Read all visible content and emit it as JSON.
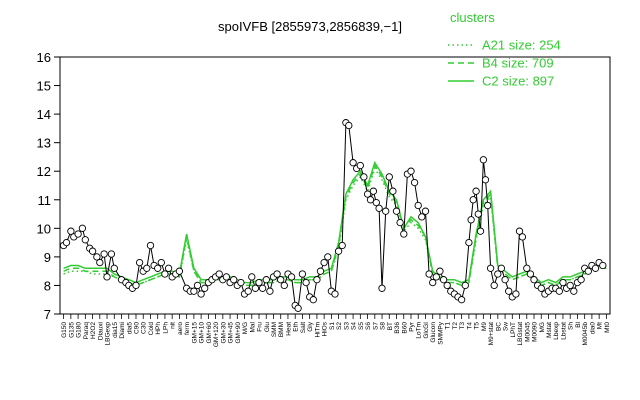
{
  "chart_data": {
    "type": "line",
    "title": "spoIVFB [2855973,2856839,−1]",
    "xlabel": "",
    "ylabel": "",
    "ylim": [
      7,
      16
    ],
    "yticks": [
      7,
      8,
      9,
      10,
      11,
      12,
      13,
      14,
      15,
      16
    ],
    "grid": false,
    "legend": {
      "title": "clusters",
      "placement": "top-right",
      "color": "#33cc33",
      "entries": [
        {
          "label": "A21 size: 254",
          "style": "dotted"
        },
        {
          "label": "B4 size: 709",
          "style": "dashed"
        },
        {
          "label": "C2 size: 897",
          "style": "solid"
        }
      ]
    },
    "x_tick_labels": [
      "G150",
      "G135",
      "G180",
      "Paraq",
      "H2O2",
      "Diauxi",
      "LBGexp",
      "dia15",
      "Diami",
      "dia5",
      "C90",
      "C30",
      "Cold",
      "HPh",
      "LPh",
      "nit",
      "aero",
      "ferm",
      "GM+15",
      "GM+10",
      "GM+60",
      "GM+120",
      "GM+30",
      "GM+45",
      "GM+90",
      "M/G",
      "Mal",
      "Fru",
      "Glu",
      "SMM",
      "BMM",
      "Heat",
      "Eth",
      "Salt",
      "Gly",
      "HiTm",
      "HiOs",
      "S1",
      "S2",
      "S3",
      "S4",
      "S5",
      "S6",
      "S7",
      "S8",
      "BT",
      "B36",
      "B60",
      "Pyr",
      "LoTm",
      "GlcGI",
      "Glucon",
      "SMMPy",
      "T1",
      "T2",
      "T3",
      "T4",
      "T5",
      "M9",
      "M9+stat",
      "BC",
      "Sw",
      "LPhT",
      "LBGstat",
      "M0045",
      "M0090",
      "MG",
      "Mstat",
      "Lbexp",
      "Lbstat",
      "Sh",
      "Bl",
      "M0045b",
      "dia0",
      "Mt",
      "Mt0"
    ],
    "series": [
      {
        "name": "C2 size: 897",
        "style": "solid",
        "color": "#33cc33",
        "values": [
          8.6,
          8.7,
          8.7,
          8.6,
          8.6,
          8.6,
          8.6,
          8.4,
          8.3,
          8.2,
          8.1,
          8.2,
          8.3,
          8.4,
          8.5,
          8.5,
          8.4,
          9.8,
          8.6,
          8.2,
          8.2,
          8.2,
          8.3,
          8.3,
          8.2,
          8.1,
          8.1,
          8.2,
          8.2,
          8.2,
          8.3,
          8.3,
          8.2,
          8.2,
          8.3,
          8.3,
          8.5,
          8.6,
          9.5,
          11.2,
          11.7,
          12.0,
          11.5,
          12.3,
          11.9,
          11.3,
          11.0,
          10.0,
          10.4,
          10.2,
          9.7,
          8.5,
          8.3,
          8.2,
          8.2,
          8.1,
          8.2,
          9.8,
          11.0,
          11.3,
          8.7,
          8.5,
          8.3,
          8.4,
          8.5,
          8.3,
          8.1,
          8.2,
          8.1,
          8.3,
          8.3,
          8.4,
          8.5,
          8.6,
          8.7,
          8.7
        ]
      },
      {
        "name": "A21 size: 254",
        "style": "dotted",
        "color": "#33cc33",
        "values": [
          8.4,
          8.5,
          8.5,
          8.5,
          8.4,
          8.4,
          8.4,
          8.3,
          8.2,
          8.1,
          8.0,
          8.1,
          8.2,
          8.3,
          8.4,
          8.4,
          8.3,
          9.6,
          8.5,
          8.1,
          8.1,
          8.2,
          8.2,
          8.2,
          8.1,
          8.0,
          8.0,
          8.1,
          8.1,
          8.1,
          8.2,
          8.2,
          8.1,
          8.1,
          8.2,
          8.2,
          8.4,
          8.5,
          9.3,
          11.0,
          11.5,
          11.8,
          11.3,
          12.1,
          11.7,
          11.1,
          10.8,
          9.9,
          10.2,
          10.0,
          9.6,
          8.4,
          8.2,
          8.1,
          8.1,
          8.0,
          8.1,
          9.6,
          10.8,
          11.1,
          8.6,
          8.4,
          8.2,
          8.3,
          8.4,
          8.2,
          8.0,
          8.1,
          8.0,
          8.2,
          8.2,
          8.3,
          8.4,
          8.5,
          8.6,
          8.6
        ]
      },
      {
        "name": "B4 size: 709",
        "style": "dashed",
        "color": "#33cc33",
        "values": [
          8.5,
          8.6,
          8.6,
          8.5,
          8.5,
          8.5,
          8.5,
          8.3,
          8.2,
          8.1,
          8.0,
          8.1,
          8.2,
          8.3,
          8.4,
          8.4,
          8.3,
          9.7,
          8.5,
          8.1,
          8.1,
          8.2,
          8.2,
          8.2,
          8.1,
          8.0,
          8.0,
          8.1,
          8.1,
          8.1,
          8.2,
          8.2,
          8.1,
          8.1,
          8.2,
          8.2,
          8.4,
          8.5,
          9.4,
          11.1,
          11.6,
          11.9,
          11.4,
          12.2,
          11.8,
          11.2,
          10.9,
          10.0,
          10.3,
          10.1,
          9.7,
          8.4,
          8.2,
          8.1,
          8.1,
          8.0,
          8.1,
          9.7,
          10.9,
          11.2,
          8.6,
          8.4,
          8.2,
          8.3,
          8.4,
          8.2,
          8.0,
          8.1,
          8.0,
          8.2,
          8.2,
          8.3,
          8.4,
          8.5,
          8.6,
          8.6
        ]
      }
    ],
    "gene_points": [
      {
        "x": 0,
        "y": 9.4
      },
      {
        "x": 0.4,
        "y": 9.5
      },
      {
        "x": 1,
        "y": 9.9
      },
      {
        "x": 1.4,
        "y": 9.7
      },
      {
        "x": 2,
        "y": 9.8
      },
      {
        "x": 2.6,
        "y": 10.0
      },
      {
        "x": 3,
        "y": 9.6
      },
      {
        "x": 3.6,
        "y": 9.3
      },
      {
        "x": 4,
        "y": 9.2
      },
      {
        "x": 4.6,
        "y": 9.0
      },
      {
        "x": 5,
        "y": 8.8
      },
      {
        "x": 5.6,
        "y": 9.1
      },
      {
        "x": 6,
        "y": 8.3
      },
      {
        "x": 6.6,
        "y": 9.1
      },
      {
        "x": 7,
        "y": 8.6
      },
      {
        "x": 8,
        "y": 8.2
      },
      {
        "x": 8.6,
        "y": 8.1
      },
      {
        "x": 9,
        "y": 8.0
      },
      {
        "x": 9.5,
        "y": 7.9
      },
      {
        "x": 10,
        "y": 8.0
      },
      {
        "x": 10.5,
        "y": 8.8
      },
      {
        "x": 11,
        "y": 8.5
      },
      {
        "x": 11.5,
        "y": 8.6
      },
      {
        "x": 12,
        "y": 9.4
      },
      {
        "x": 12.5,
        "y": 8.7
      },
      {
        "x": 13,
        "y": 8.6
      },
      {
        "x": 13.5,
        "y": 8.8
      },
      {
        "x": 14,
        "y": 8.4
      },
      {
        "x": 14.5,
        "y": 8.6
      },
      {
        "x": 15,
        "y": 8.3
      },
      {
        "x": 15.5,
        "y": 8.4
      },
      {
        "x": 16,
        "y": 8.5
      },
      {
        "x": 17,
        "y": 7.9
      },
      {
        "x": 17.5,
        "y": 7.8
      },
      {
        "x": 18,
        "y": 7.8
      },
      {
        "x": 18.5,
        "y": 8.0
      },
      {
        "x": 19,
        "y": 7.7
      },
      {
        "x": 19.5,
        "y": 7.9
      },
      {
        "x": 20,
        "y": 8.1
      },
      {
        "x": 20.5,
        "y": 8.2
      },
      {
        "x": 21,
        "y": 8.3
      },
      {
        "x": 21.5,
        "y": 8.4
      },
      {
        "x": 22,
        "y": 8.2
      },
      {
        "x": 22.5,
        "y": 8.3
      },
      {
        "x": 23,
        "y": 8.1
      },
      {
        "x": 23.5,
        "y": 8.2
      },
      {
        "x": 24,
        "y": 8.0
      },
      {
        "x": 24.5,
        "y": 8.1
      },
      {
        "x": 25,
        "y": 7.7
      },
      {
        "x": 25.5,
        "y": 7.8
      },
      {
        "x": 26,
        "y": 8.3
      },
      {
        "x": 26.5,
        "y": 7.9
      },
      {
        "x": 27,
        "y": 8.1
      },
      {
        "x": 27.5,
        "y": 7.9
      },
      {
        "x": 28,
        "y": 8.2
      },
      {
        "x": 28.5,
        "y": 7.8
      },
      {
        "x": 29,
        "y": 8.3
      },
      {
        "x": 29.5,
        "y": 8.4
      },
      {
        "x": 30,
        "y": 8.2
      },
      {
        "x": 30.5,
        "y": 8.0
      },
      {
        "x": 31,
        "y": 8.4
      },
      {
        "x": 31.5,
        "y": 8.3
      },
      {
        "x": 32,
        "y": 7.3
      },
      {
        "x": 32.4,
        "y": 7.2
      },
      {
        "x": 33,
        "y": 8.4
      },
      {
        "x": 33.5,
        "y": 8.1
      },
      {
        "x": 34,
        "y": 7.6
      },
      {
        "x": 34.5,
        "y": 7.5
      },
      {
        "x": 35,
        "y": 8.2
      },
      {
        "x": 35.5,
        "y": 8.5
      },
      {
        "x": 36,
        "y": 8.8
      },
      {
        "x": 36.5,
        "y": 9.0
      },
      {
        "x": 37,
        "y": 7.8
      },
      {
        "x": 37.5,
        "y": 7.7
      },
      {
        "x": 38,
        "y": 9.2
      },
      {
        "x": 38.5,
        "y": 9.4
      },
      {
        "x": 39,
        "y": 13.7
      },
      {
        "x": 39.4,
        "y": 13.6
      },
      {
        "x": 40,
        "y": 12.3
      },
      {
        "x": 40.5,
        "y": 12.1
      },
      {
        "x": 41,
        "y": 12.2
      },
      {
        "x": 41.5,
        "y": 11.8
      },
      {
        "x": 42,
        "y": 11.2
      },
      {
        "x": 42.4,
        "y": 11.0
      },
      {
        "x": 42.8,
        "y": 11.3
      },
      {
        "x": 43.2,
        "y": 10.9
      },
      {
        "x": 43.6,
        "y": 10.7
      },
      {
        "x": 44,
        "y": 7.9
      },
      {
        "x": 44.5,
        "y": 10.6
      },
      {
        "x": 45,
        "y": 11.8
      },
      {
        "x": 45.5,
        "y": 11.3
      },
      {
        "x": 46,
        "y": 10.6
      },
      {
        "x": 46.5,
        "y": 10.2
      },
      {
        "x": 47,
        "y": 9.8
      },
      {
        "x": 47.5,
        "y": 11.9
      },
      {
        "x": 48,
        "y": 12.0
      },
      {
        "x": 48.5,
        "y": 11.6
      },
      {
        "x": 49,
        "y": 10.8
      },
      {
        "x": 49.5,
        "y": 10.4
      },
      {
        "x": 50,
        "y": 10.6
      },
      {
        "x": 50.5,
        "y": 8.4
      },
      {
        "x": 51,
        "y": 8.1
      },
      {
        "x": 51.5,
        "y": 8.3
      },
      {
        "x": 52,
        "y": 8.5
      },
      {
        "x": 52.5,
        "y": 8.2
      },
      {
        "x": 53,
        "y": 8.0
      },
      {
        "x": 53.5,
        "y": 7.8
      },
      {
        "x": 54,
        "y": 7.7
      },
      {
        "x": 54.5,
        "y": 7.6
      },
      {
        "x": 55,
        "y": 7.5
      },
      {
        "x": 55.5,
        "y": 8.0
      },
      {
        "x": 56,
        "y": 9.5
      },
      {
        "x": 56.3,
        "y": 10.3
      },
      {
        "x": 56.6,
        "y": 11.0
      },
      {
        "x": 57,
        "y": 11.3
      },
      {
        "x": 57.3,
        "y": 10.5
      },
      {
        "x": 57.6,
        "y": 9.9
      },
      {
        "x": 58,
        "y": 12.4
      },
      {
        "x": 58.3,
        "y": 11.7
      },
      {
        "x": 58.6,
        "y": 10.8
      },
      {
        "x": 59,
        "y": 8.6
      },
      {
        "x": 59.5,
        "y": 8.0
      },
      {
        "x": 60,
        "y": 8.4
      },
      {
        "x": 60.5,
        "y": 8.6
      },
      {
        "x": 61,
        "y": 8.2
      },
      {
        "x": 61.5,
        "y": 7.8
      },
      {
        "x": 62,
        "y": 7.6
      },
      {
        "x": 62.5,
        "y": 7.7
      },
      {
        "x": 63,
        "y": 9.9
      },
      {
        "x": 63.4,
        "y": 9.7
      },
      {
        "x": 64,
        "y": 8.6
      },
      {
        "x": 64.5,
        "y": 8.4
      },
      {
        "x": 65,
        "y": 8.2
      },
      {
        "x": 65.5,
        "y": 8.0
      },
      {
        "x": 66,
        "y": 7.9
      },
      {
        "x": 66.5,
        "y": 7.7
      },
      {
        "x": 67,
        "y": 7.8
      },
      {
        "x": 67.5,
        "y": 7.9
      },
      {
        "x": 68,
        "y": 7.9
      },
      {
        "x": 68.5,
        "y": 7.8
      },
      {
        "x": 69,
        "y": 8.1
      },
      {
        "x": 69.5,
        "y": 7.9
      },
      {
        "x": 70,
        "y": 8.0
      },
      {
        "x": 70.5,
        "y": 7.8
      },
      {
        "x": 71,
        "y": 8.1
      },
      {
        "x": 71.5,
        "y": 8.2
      },
      {
        "x": 72,
        "y": 8.6
      },
      {
        "x": 72.5,
        "y": 8.5
      },
      {
        "x": 73,
        "y": 8.7
      },
      {
        "x": 73.5,
        "y": 8.6
      },
      {
        "x": 74,
        "y": 8.8
      },
      {
        "x": 74.5,
        "y": 8.7
      }
    ],
    "gene_line_color": "#000000",
    "point_fill": "#ffffff"
  }
}
